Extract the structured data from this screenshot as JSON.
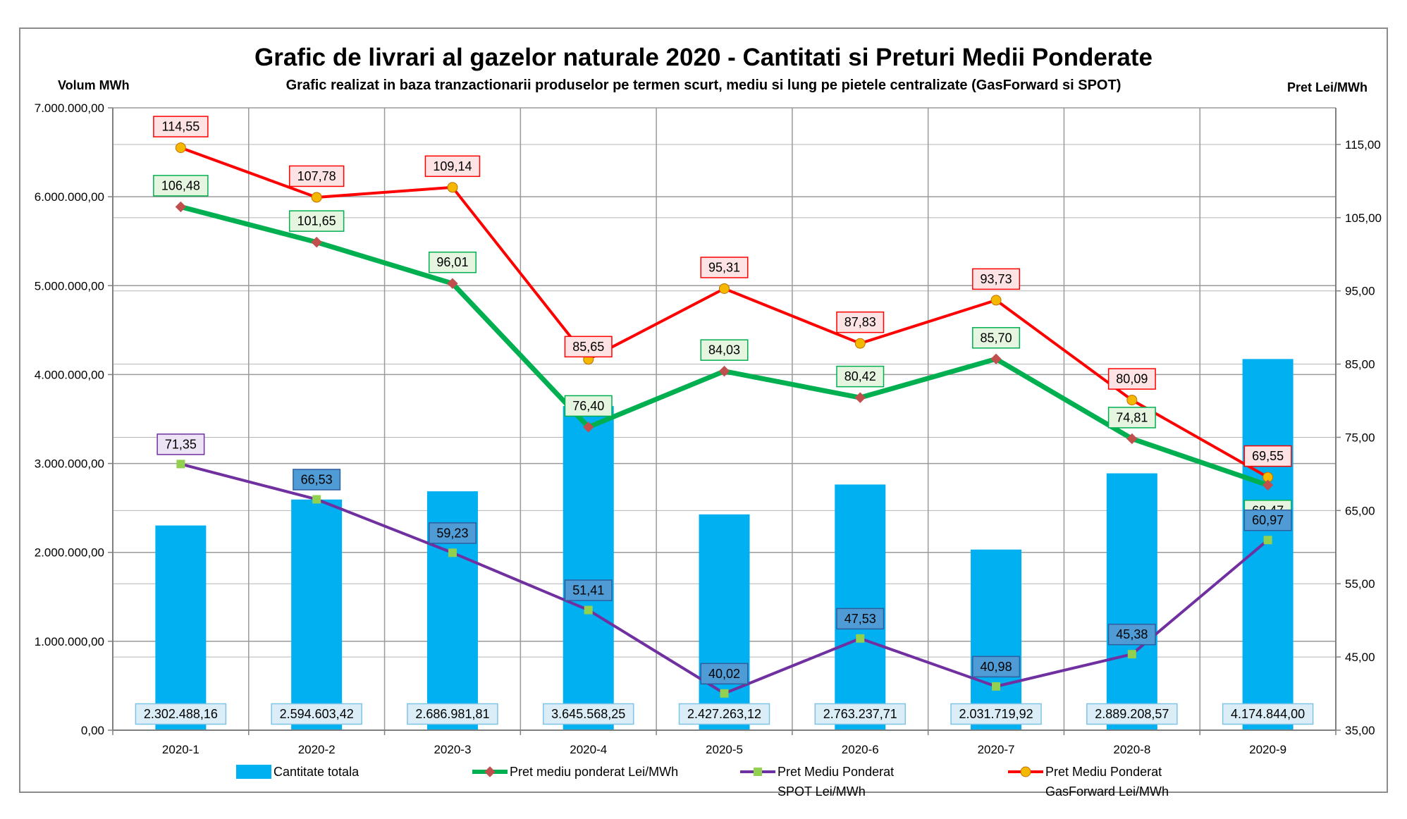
{
  "chart_data": {
    "type": "bar",
    "title": "Grafic de livrari al gazelor naturale 2020 - Cantitati si Preturi Medii Ponderate",
    "subtitle": "Grafic realizat in baza tranzactionarii produselor pe termen scurt, mediu si lung pe pietele centralizate (GasForward si SPOT)",
    "ylabel": "Volum MWh",
    "y2label": "Pret Lei/MWh",
    "categories": [
      "2020-1",
      "2020-2",
      "2020-3",
      "2020-4",
      "2020-5",
      "2020-6",
      "2020-7",
      "2020-8",
      "2020-9"
    ],
    "ylim": [
      0,
      7000000
    ],
    "y2lim": [
      35,
      120
    ],
    "yticks": [
      "0,00",
      "1.000.000,00",
      "2.000.000,00",
      "3.000.000,00",
      "4.000.000,00",
      "5.000.000,00",
      "6.000.000,00",
      "7.000.000,00"
    ],
    "y2ticks": [
      "35,00",
      "45,00",
      "55,00",
      "65,00",
      "75,00",
      "85,00",
      "95,00",
      "105,00",
      "115,00"
    ],
    "grid": true,
    "legend_position": "bottom",
    "series": [
      {
        "name": "Cantitate totala",
        "type": "bar",
        "axis": "left",
        "color": "#00b0f0",
        "values": [
          2302488.16,
          2594603.42,
          2686981.81,
          3645568.25,
          2427263.12,
          2763237.71,
          2031719.92,
          2889208.57,
          4174844.0
        ],
        "labels": [
          "2.302.488,16",
          "2.594.603,42",
          "2.686.981,81",
          "3.645.568,25",
          "2.427.263,12",
          "2.763.237,71",
          "2.031.719,92",
          "2.889.208,57",
          "4.174.844,00"
        ],
        "label_fill": "#dbeef8",
        "label_stroke": "#7fc3e6"
      },
      {
        "name": "Pret mediu ponderat Lei/MWh",
        "type": "line",
        "axis": "right",
        "color": "#00b050",
        "marker_color": "#c0504d",
        "marker": "diamond",
        "values": [
          106.48,
          101.65,
          96.01,
          76.4,
          84.03,
          80.42,
          85.7,
          74.81,
          68.47
        ],
        "labels": [
          "106,48",
          "101,65",
          "96,01",
          "76,40",
          "84,03",
          "80,42",
          "85,70",
          "74,81",
          "68,47"
        ],
        "label_fill": "#e6f5e0",
        "label_stroke": "#00b050"
      },
      {
        "name": "Pret Mediu Ponderat SPOT Lei/MWh",
        "type": "line",
        "axis": "right",
        "color": "#7030a0",
        "marker_color": "#92d050",
        "marker": "square",
        "values": [
          71.35,
          66.53,
          59.23,
          51.41,
          40.02,
          47.53,
          40.98,
          45.38,
          60.97
        ],
        "labels": [
          "71,35",
          "66,53",
          "59,23",
          "51,41",
          "40,02",
          "47,53",
          "40,98",
          "45,38",
          "60,97"
        ],
        "label_fill_first": "#ece4f4",
        "label_stroke_first": "#7030a0",
        "label_fill": "#4f9bd5",
        "label_stroke": "#2e5e9e"
      },
      {
        "name": "Pret Mediu Ponderat GasForward Lei/MWh",
        "type": "line",
        "axis": "right",
        "color": "#ff0000",
        "marker_color": "#f5b800",
        "marker": "circle",
        "values": [
          114.55,
          107.78,
          109.14,
          85.65,
          95.31,
          87.83,
          93.73,
          80.09,
          69.55
        ],
        "labels": [
          "114,55",
          "107,78",
          "109,14",
          "85,65",
          "95,31",
          "87,83",
          "93,73",
          "80,09",
          "69,55"
        ],
        "label_fill": "#fde3e3",
        "label_stroke": "#ff0000"
      }
    ],
    "legend": [
      {
        "text_lines": [
          "Cantitate totala"
        ],
        "series": 0
      },
      {
        "text_lines": [
          "Pret mediu ponderat Lei/MWh"
        ],
        "series": 1
      },
      {
        "text_lines": [
          "Pret Mediu Ponderat",
          "SPOT Lei/MWh"
        ],
        "series": 2
      },
      {
        "text_lines": [
          "Pret Mediu Ponderat",
          "GasForward Lei/MWh"
        ],
        "series": 3
      }
    ]
  }
}
